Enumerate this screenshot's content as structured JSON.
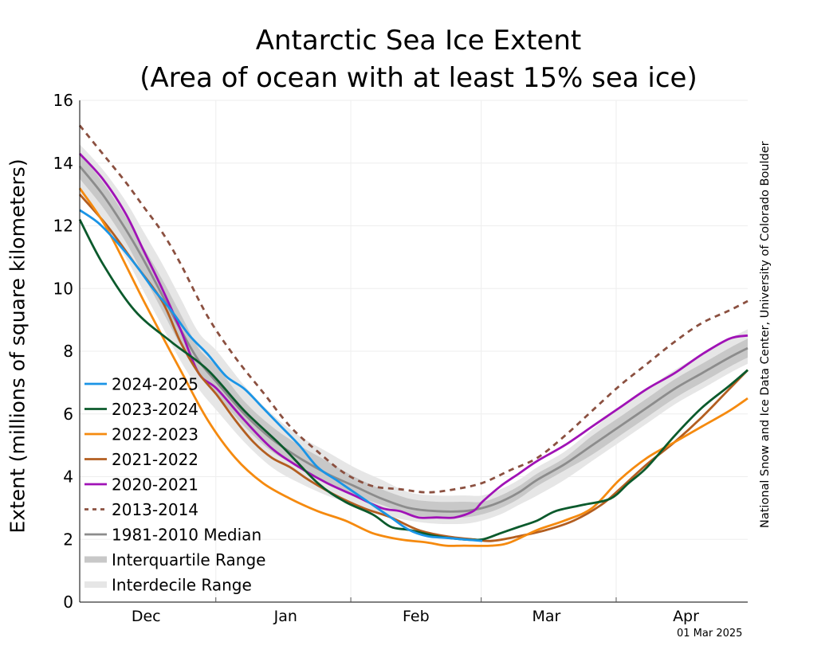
{
  "chart_data": {
    "type": "line",
    "title": "Antarctic Sea Ice Extent",
    "subtitle": "(Area of ocean with at least 15% sea ice)",
    "ylabel": "Extent (millions of square kilometers)",
    "xlabel": "",
    "ylim": [
      0,
      16
    ],
    "yticks": [
      "0",
      "2",
      "4",
      "6",
      "8",
      "10",
      "12",
      "14",
      "16"
    ],
    "xlim": [
      0,
      146
    ],
    "xticks": [
      {
        "label": "Dec",
        "x": 14.5
      },
      {
        "label": "Jan",
        "x": 45
      },
      {
        "label": "Feb",
        "x": 73.5
      },
      {
        "label": "Mar",
        "x": 102
      },
      {
        "label": "Apr",
        "x": 132.5
      }
    ],
    "grid": true,
    "legend_position": "lower-left",
    "credit": "National Snow and Ice Data Center, University of Colorado Boulder",
    "date_stamp": "01 Mar 2025",
    "x_units": "days from mid-November (approx.)",
    "series": [
      {
        "name": "2024-2025",
        "color": "#1a94e6",
        "style": "solid",
        "x": [
          0,
          4,
          8,
          12,
          16,
          20,
          24,
          28,
          32,
          36,
          40,
          44,
          48,
          52,
          56,
          60,
          64,
          68,
          72,
          76,
          80,
          84,
          88
        ],
        "y": [
          12.5,
          12.1,
          11.5,
          10.8,
          10.0,
          9.3,
          8.5,
          7.9,
          7.2,
          6.8,
          6.2,
          5.6,
          5.0,
          4.3,
          3.9,
          3.5,
          3.1,
          2.7,
          2.3,
          2.1,
          2.05,
          2.0,
          1.95
        ]
      },
      {
        "name": "2023-2024",
        "color": "#0b5a2c",
        "style": "solid",
        "x": [
          0,
          5,
          12,
          20,
          28,
          36,
          44,
          52,
          58,
          64,
          68,
          72,
          78,
          84,
          88,
          92,
          96,
          100,
          104,
          110,
          116,
          120,
          124,
          130,
          136,
          142,
          146
        ],
        "y": [
          12.2,
          10.8,
          9.3,
          8.3,
          7.4,
          6.1,
          5.0,
          3.8,
          3.2,
          2.8,
          2.4,
          2.3,
          2.1,
          2.0,
          2.0,
          2.2,
          2.4,
          2.6,
          2.9,
          3.1,
          3.3,
          3.8,
          4.3,
          5.3,
          6.2,
          6.9,
          7.4
        ]
      },
      {
        "name": "2022-2023",
        "color": "#f58a0f",
        "style": "solid",
        "x": [
          0,
          6,
          14,
          22,
          28,
          34,
          40,
          46,
          52,
          58,
          64,
          70,
          76,
          80,
          84,
          90,
          94,
          100,
          106,
          112,
          118,
          124,
          130,
          136,
          142,
          146
        ],
        "y": [
          13.2,
          11.9,
          9.6,
          7.4,
          5.8,
          4.6,
          3.8,
          3.3,
          2.9,
          2.6,
          2.2,
          2.0,
          1.9,
          1.8,
          1.8,
          1.8,
          1.9,
          2.3,
          2.6,
          3.0,
          3.9,
          4.6,
          5.1,
          5.6,
          6.1,
          6.5
        ]
      },
      {
        "name": "2021-2022",
        "color": "#b35e20",
        "style": "solid",
        "x": [
          0,
          6,
          12,
          18,
          22,
          26,
          30,
          34,
          38,
          42,
          46,
          50,
          56,
          62,
          68,
          74,
          80,
          86,
          90,
          96,
          102,
          108,
          114,
          118,
          124,
          130,
          136,
          142,
          146
        ],
        "y": [
          13.0,
          12.0,
          10.8,
          9.6,
          8.3,
          7.3,
          6.6,
          5.8,
          5.1,
          4.6,
          4.3,
          3.9,
          3.4,
          3.0,
          2.7,
          2.3,
          2.1,
          2.0,
          1.95,
          2.1,
          2.3,
          2.6,
          3.1,
          3.6,
          4.4,
          5.1,
          5.9,
          6.8,
          7.4
        ]
      },
      {
        "name": "2020-2021",
        "color": "#a012b6",
        "style": "solid",
        "x": [
          0,
          5,
          10,
          14,
          18,
          22,
          26,
          30,
          36,
          42,
          48,
          54,
          60,
          66,
          70,
          74,
          78,
          82,
          86,
          88,
          92,
          96,
          100,
          106,
          112,
          118,
          124,
          130,
          136,
          142,
          146
        ],
        "y": [
          14.3,
          13.5,
          12.4,
          11.2,
          10.0,
          8.7,
          7.3,
          6.8,
          5.8,
          4.9,
          4.3,
          3.8,
          3.4,
          3.0,
          2.9,
          2.7,
          2.7,
          2.7,
          2.9,
          3.2,
          3.7,
          4.1,
          4.5,
          5.0,
          5.6,
          6.2,
          6.8,
          7.3,
          7.9,
          8.4,
          8.5
        ]
      },
      {
        "name": "2013-2014",
        "color": "#8b5040",
        "style": "dashed",
        "x": [
          0,
          5,
          10,
          14,
          18,
          22,
          28,
          34,
          40,
          46,
          52,
          58,
          64,
          70,
          76,
          82,
          88,
          94,
          100,
          106,
          112,
          118,
          124,
          130,
          136,
          142,
          146
        ],
        "y": [
          15.2,
          14.3,
          13.4,
          12.6,
          11.8,
          10.8,
          9.1,
          7.8,
          6.7,
          5.6,
          4.8,
          4.1,
          3.7,
          3.6,
          3.5,
          3.6,
          3.8,
          4.2,
          4.6,
          5.3,
          6.1,
          6.9,
          7.6,
          8.3,
          8.9,
          9.3,
          9.6
        ]
      },
      {
        "name": "1981-2010 Median",
        "color": "#8c8c8c",
        "style": "solid",
        "x": [
          0,
          5,
          10,
          14,
          18,
          22,
          26,
          30,
          36,
          42,
          48,
          54,
          60,
          66,
          72,
          78,
          84,
          88,
          92,
          96,
          100,
          106,
          112,
          118,
          124,
          130,
          136,
          142,
          146
        ],
        "y": [
          13.9,
          13.0,
          11.9,
          10.9,
          9.8,
          8.7,
          7.7,
          7.0,
          6.0,
          5.2,
          4.6,
          4.1,
          3.7,
          3.3,
          3.0,
          2.9,
          2.9,
          3.0,
          3.2,
          3.5,
          3.9,
          4.4,
          5.0,
          5.6,
          6.2,
          6.8,
          7.3,
          7.8,
          8.1
        ]
      }
    ],
    "bands": [
      {
        "name": "Interquartile Range",
        "color": "#c8c8c8",
        "x": [
          0,
          5,
          10,
          14,
          18,
          22,
          26,
          30,
          36,
          42,
          48,
          54,
          60,
          66,
          72,
          78,
          84,
          88,
          92,
          96,
          100,
          106,
          112,
          118,
          124,
          130,
          136,
          142,
          146
        ],
        "lower": [
          13.5,
          12.6,
          11.5,
          10.4,
          9.3,
          8.2,
          7.3,
          6.6,
          5.6,
          4.8,
          4.3,
          3.8,
          3.4,
          3.1,
          2.8,
          2.7,
          2.7,
          2.8,
          3.0,
          3.3,
          3.7,
          4.2,
          4.7,
          5.3,
          5.9,
          6.5,
          7.0,
          7.5,
          7.8
        ],
        "upper": [
          14.3,
          13.4,
          12.3,
          11.3,
          10.3,
          9.2,
          8.1,
          7.5,
          6.4,
          5.6,
          5.0,
          4.5,
          4.0,
          3.6,
          3.3,
          3.2,
          3.2,
          3.2,
          3.4,
          3.7,
          4.1,
          4.6,
          5.3,
          5.9,
          6.5,
          7.1,
          7.6,
          8.1,
          8.4
        ]
      },
      {
        "name": "Interdecile Range",
        "color": "#e6e6e6",
        "x": [
          0,
          5,
          10,
          14,
          18,
          22,
          26,
          30,
          36,
          42,
          48,
          54,
          60,
          66,
          72,
          78,
          84,
          88,
          92,
          96,
          100,
          106,
          112,
          118,
          124,
          130,
          136,
          142,
          146
        ],
        "lower": [
          13.1,
          12.1,
          11.0,
          9.9,
          8.8,
          7.7,
          6.8,
          6.1,
          5.1,
          4.3,
          3.8,
          3.4,
          3.1,
          2.8,
          2.6,
          2.5,
          2.5,
          2.6,
          2.8,
          3.1,
          3.4,
          3.9,
          4.5,
          5.1,
          5.7,
          6.3,
          6.8,
          7.3,
          7.6
        ],
        "upper": [
          14.6,
          13.8,
          12.8,
          11.8,
          10.8,
          9.7,
          8.6,
          8.0,
          6.9,
          6.0,
          5.3,
          4.8,
          4.3,
          3.9,
          3.5,
          3.4,
          3.4,
          3.4,
          3.6,
          3.9,
          4.3,
          4.8,
          5.5,
          6.2,
          6.8,
          7.4,
          7.9,
          8.4,
          8.7
        ]
      }
    ]
  }
}
